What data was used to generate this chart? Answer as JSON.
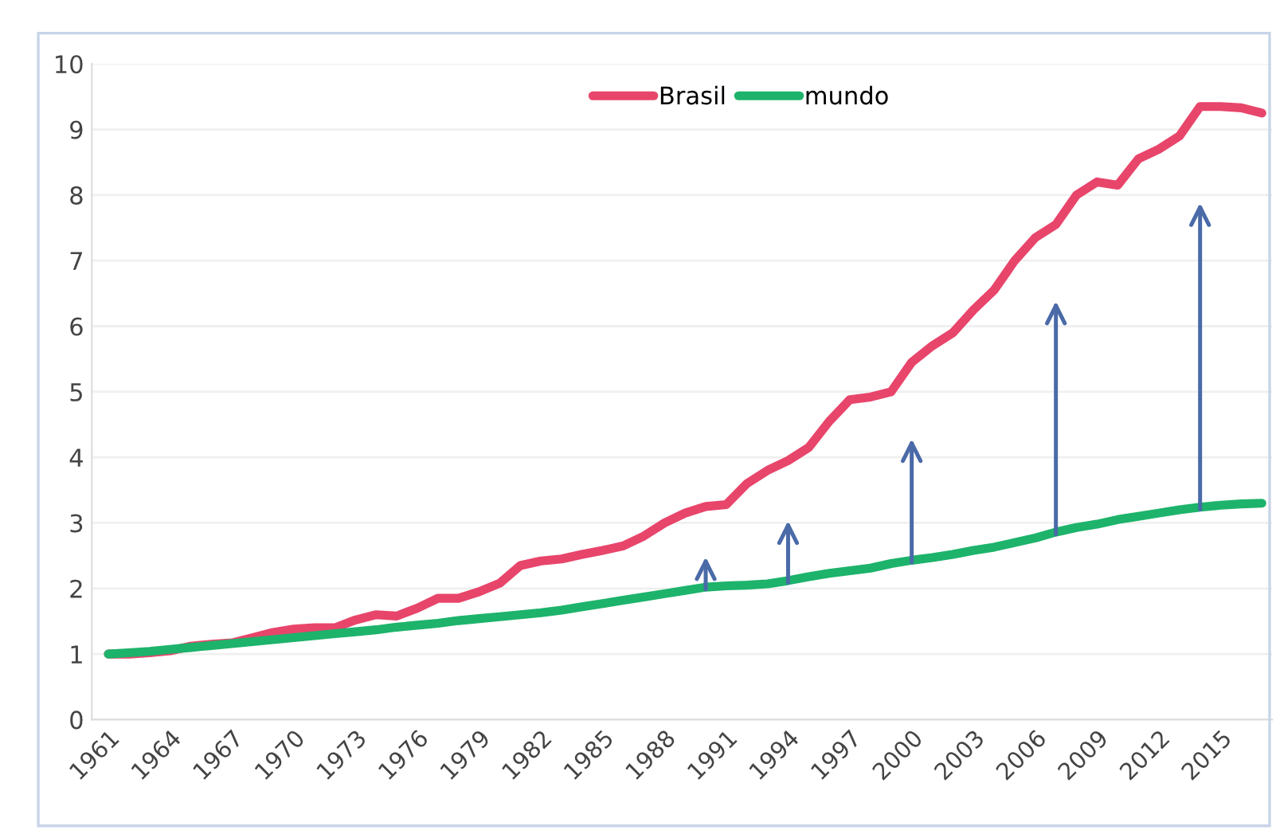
{
  "chart_data": {
    "type": "line",
    "categories": [
      "1961",
      null,
      null,
      "1964",
      null,
      null,
      "1967",
      null,
      null,
      "1970",
      null,
      null,
      "1973",
      null,
      null,
      "1976",
      null,
      null,
      "1979",
      null,
      null,
      "1982",
      null,
      null,
      "1985",
      null,
      null,
      "1988",
      null,
      null,
      "1991",
      null,
      null,
      "1994",
      null,
      null,
      "1997",
      null,
      null,
      "2000",
      null,
      null,
      "2003",
      null,
      null,
      "2006",
      null,
      null,
      "2009",
      null,
      null,
      "2012",
      null,
      null,
      "2015",
      null,
      null
    ],
    "series": [
      {
        "name": "Brasil",
        "color": "#e8456b",
        "values": [
          1.0,
          1.0,
          1.02,
          1.05,
          1.12,
          1.15,
          1.17,
          1.25,
          1.33,
          1.38,
          1.4,
          1.4,
          1.52,
          1.6,
          1.58,
          1.7,
          1.85,
          1.85,
          1.95,
          2.08,
          2.35,
          2.42,
          2.45,
          2.52,
          2.58,
          2.65,
          2.8,
          3.0,
          3.15,
          3.25,
          3.28,
          3.6,
          3.8,
          3.95,
          4.15,
          4.55,
          4.88,
          4.92,
          5.0,
          5.45,
          5.7,
          5.9,
          6.25,
          6.55,
          7.0,
          7.35,
          7.55,
          8.0,
          8.2,
          8.15,
          8.55,
          8.7,
          8.9,
          9.35,
          9.35,
          9.33,
          9.25
        ]
      },
      {
        "name": "mundo",
        "color": "#1db36b",
        "values": [
          1.0,
          1.02,
          1.04,
          1.07,
          1.1,
          1.13,
          1.16,
          1.19,
          1.22,
          1.25,
          1.28,
          1.31,
          1.34,
          1.37,
          1.41,
          1.44,
          1.47,
          1.51,
          1.54,
          1.57,
          1.6,
          1.63,
          1.67,
          1.72,
          1.77,
          1.82,
          1.87,
          1.92,
          1.97,
          2.02,
          2.04,
          2.05,
          2.07,
          2.12,
          2.18,
          2.23,
          2.27,
          2.31,
          2.38,
          2.43,
          2.47,
          2.52,
          2.58,
          2.63,
          2.7,
          2.77,
          2.86,
          2.93,
          2.98,
          3.05,
          3.1,
          3.15,
          3.2,
          3.24,
          3.27,
          3.29,
          3.3
        ]
      }
    ],
    "ylim": [
      0,
      10
    ],
    "yticks": [
      0,
      1,
      2,
      3,
      4,
      5,
      6,
      7,
      8,
      9,
      10
    ],
    "grid": "y",
    "legend": "top",
    "marker": "none",
    "line_style": "solid"
  }
}
